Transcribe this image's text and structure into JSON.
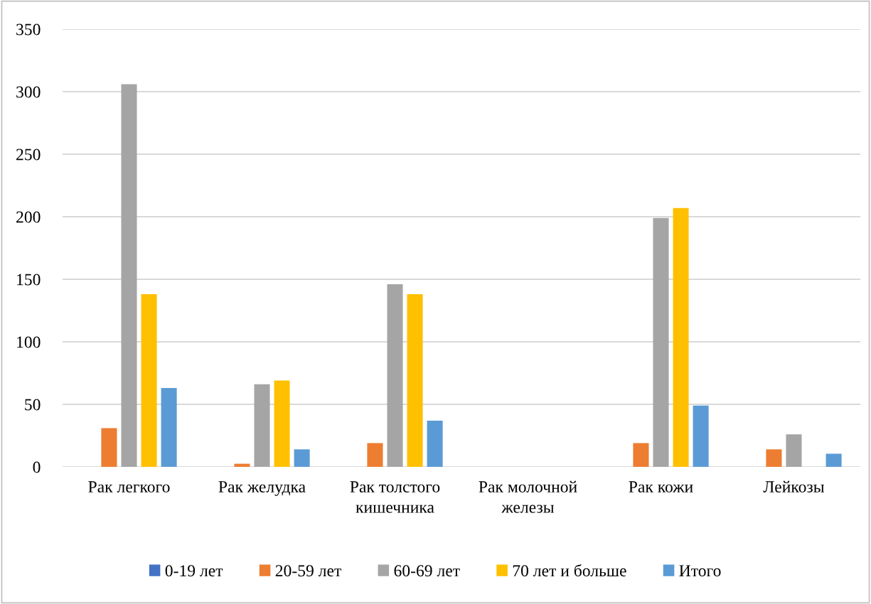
{
  "chart_data": {
    "type": "bar",
    "categories": [
      "Рак легкого",
      "Рак желудка",
      "Рак толстого\nкишечника",
      "Рак молочной\nжелезы",
      "Рак кожи",
      "Лейкозы"
    ],
    "series": [
      {
        "name": "0-19 лет",
        "color": "#4472c4",
        "values": [
          0,
          0,
          0,
          0,
          0,
          0
        ]
      },
      {
        "name": "20-59 лет",
        "color": "#ed7d31",
        "values": [
          31,
          2.5,
          19,
          0,
          19,
          14
        ]
      },
      {
        "name": "60-69 лет",
        "color": "#a5a5a5",
        "values": [
          306,
          66,
          146,
          0,
          199,
          26
        ]
      },
      {
        "name": "70 лет и больше",
        "color": "#ffc000",
        "values": [
          138,
          69,
          138,
          0,
          207,
          0
        ]
      },
      {
        "name": "Итого",
        "color": "#5b9bd5",
        "values": [
          63,
          14,
          37,
          0,
          49,
          10.5
        ]
      }
    ],
    "ylim": [
      0,
      350
    ],
    "yticks": [
      0,
      50,
      100,
      150,
      200,
      250,
      300,
      350
    ],
    "grid": "y",
    "legend": "bottom"
  }
}
